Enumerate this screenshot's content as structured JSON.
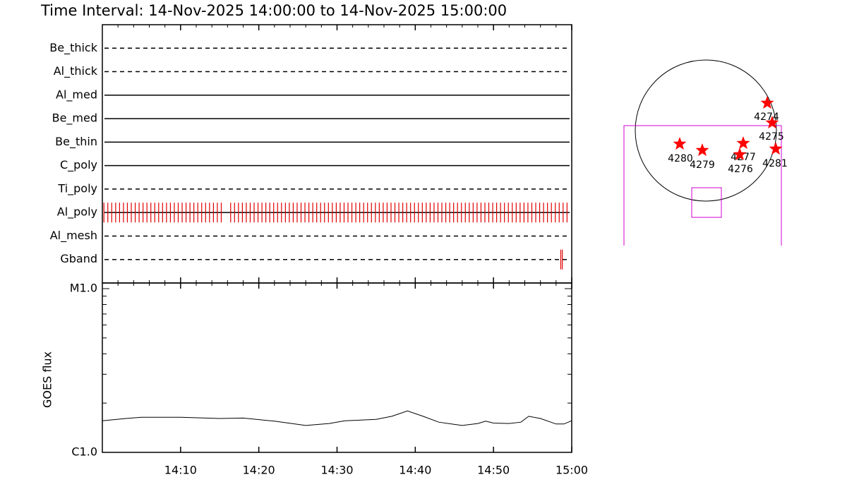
{
  "title": "Time Interval: 14-Nov-2025 14:00:00 to 14-Nov-2025 15:00:00",
  "chart_data": [
    {
      "type": "timeline",
      "xlim": [
        0,
        60
      ],
      "xticks": [
        10,
        20,
        30,
        40,
        50,
        60
      ],
      "minor_xticks": [
        2,
        4,
        6,
        8,
        12,
        14,
        16,
        18,
        22,
        24,
        26,
        28,
        32,
        34,
        36,
        38,
        42,
        44,
        46,
        48,
        52,
        54,
        56,
        58
      ],
      "rows": [
        {
          "name": "Be_thick",
          "line_style": "dashed",
          "events": []
        },
        {
          "name": "Al_thick",
          "line_style": "dashed",
          "events": []
        },
        {
          "name": "Al_med",
          "line_style": "solid",
          "events": []
        },
        {
          "name": "Be_med",
          "line_style": "solid",
          "events": []
        },
        {
          "name": "Be_thin",
          "line_style": "solid",
          "events": []
        },
        {
          "name": "C_poly",
          "line_style": "solid",
          "events": []
        },
        {
          "name": "Ti_poly",
          "line_style": "dashed",
          "events": []
        },
        {
          "name": "Al_poly",
          "line_style": "solid",
          "color": "#e00000",
          "events": [
            0.2,
            0.7,
            1.2,
            1.7,
            2.2,
            2.7,
            3.2,
            3.7,
            4.2,
            4.7,
            5.2,
            5.7,
            6.2,
            6.7,
            7.2,
            7.7,
            8.2,
            8.7,
            9.2,
            9.7,
            10.2,
            10.7,
            11.2,
            11.7,
            12.2,
            12.7,
            13.2,
            13.7,
            14.2,
            14.7,
            15.2,
            16.4,
            16.9,
            17.4,
            17.9,
            18.4,
            18.9,
            19.4,
            19.9,
            20.4,
            20.9,
            21.4,
            21.9,
            22.4,
            22.9,
            23.4,
            23.9,
            24.4,
            24.9,
            25.4,
            25.9,
            26.4,
            26.9,
            27.4,
            27.9,
            28.4,
            28.9,
            29.4,
            29.9,
            30.4,
            30.9,
            31.4,
            31.9,
            32.4,
            32.9,
            33.4,
            33.9,
            34.4,
            34.9,
            35.4,
            35.9,
            36.4,
            36.9,
            37.4,
            37.9,
            38.4,
            38.9,
            39.4,
            39.9,
            40.4,
            40.9,
            41.4,
            41.9,
            42.4,
            42.9,
            43.4,
            43.9,
            44.4,
            44.9,
            45.4,
            45.9,
            46.4,
            46.9,
            47.4,
            47.9,
            48.4,
            48.9,
            49.4,
            49.9,
            50.4,
            50.9,
            51.4,
            51.9,
            52.4,
            52.9,
            53.4,
            53.9,
            54.4,
            54.9,
            55.4,
            55.9,
            56.4,
            56.9,
            57.4,
            57.9,
            58.4,
            58.9,
            59.4
          ]
        },
        {
          "name": "Al_mesh",
          "line_style": "dashed",
          "events": []
        },
        {
          "name": "Gband",
          "line_style": "dashed",
          "color": "#e00000",
          "events": [
            58.6,
            58.8
          ]
        }
      ]
    },
    {
      "type": "line",
      "ylabel": "GOES flux",
      "log_scale": true,
      "color": "#000000",
      "xlim": [
        0,
        60
      ],
      "xticks": [
        {
          "value": 10,
          "label": "14:10"
        },
        {
          "value": 20,
          "label": "14:20"
        },
        {
          "value": 30,
          "label": "14:30"
        },
        {
          "value": 40,
          "label": "14:40"
        },
        {
          "value": 50,
          "label": "14:50"
        },
        {
          "value": 60,
          "label": "15:00"
        }
      ],
      "ylim": [
        1e-06,
        1e-05
      ],
      "yticks": [
        {
          "value": 1e-06,
          "label": "C1.0"
        },
        {
          "value": 1e-05,
          "label": "M1.0"
        }
      ],
      "minor_yticks": [
        2e-06,
        3e-06,
        4e-06,
        5e-06,
        6e-06,
        7e-06,
        8e-06,
        9e-06
      ],
      "x": [
        0,
        3,
        5,
        10,
        15,
        18,
        22,
        26,
        29,
        31,
        35,
        37,
        39,
        41,
        43,
        46,
        48,
        49,
        50,
        52,
        53.5,
        54.5,
        56,
        58,
        59,
        60
      ],
      "values": [
        1.56e-06,
        1.61e-06,
        1.64e-06,
        1.64e-06,
        1.61e-06,
        1.62e-06,
        1.55e-06,
        1.46e-06,
        1.5e-06,
        1.56e-06,
        1.59e-06,
        1.66e-06,
        1.79e-06,
        1.66e-06,
        1.53e-06,
        1.46e-06,
        1.5e-06,
        1.55e-06,
        1.51e-06,
        1.5e-06,
        1.53e-06,
        1.66e-06,
        1.61e-06,
        1.49e-06,
        1.49e-06,
        1.56e-06
      ]
    }
  ],
  "sun_map": {
    "regions": [
      "4274",
      "4275",
      "4280",
      "4279",
      "4277",
      "4276",
      "4281"
    ]
  }
}
